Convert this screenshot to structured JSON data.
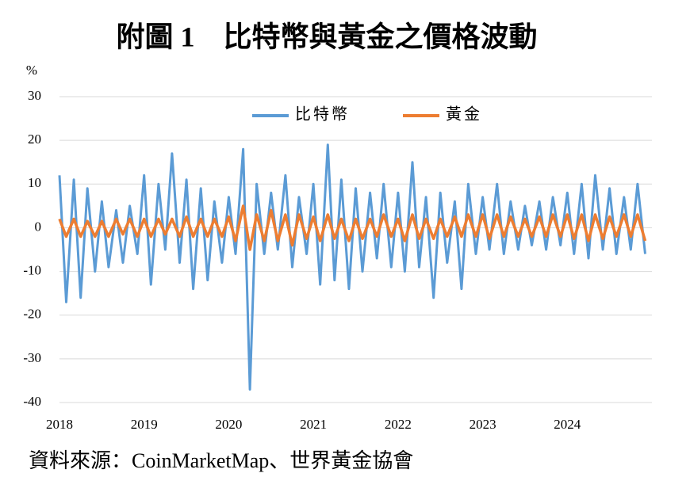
{
  "chart_data": {
    "type": "line",
    "title": "附圖 1　比特幣與黃金之價格波動",
    "y_unit": "%",
    "source": "資料來源：CoinMarketMap、世界黃金協會",
    "xlim": [
      2018,
      2025
    ],
    "xticks": [
      2018,
      2019,
      2020,
      2021,
      2022,
      2023,
      2024
    ],
    "ylim": [
      -40,
      30
    ],
    "yticks": [
      -40,
      -30,
      -20,
      -10,
      0,
      10,
      20,
      30
    ],
    "grid": true,
    "legend": "top",
    "x": [
      2018.0,
      2018.08,
      2018.17,
      2018.25,
      2018.33,
      2018.42,
      2018.5,
      2018.58,
      2018.67,
      2018.75,
      2018.83,
      2018.92,
      2019.0,
      2019.08,
      2019.17,
      2019.25,
      2019.33,
      2019.42,
      2019.5,
      2019.58,
      2019.67,
      2019.75,
      2019.83,
      2019.92,
      2020.0,
      2020.08,
      2020.17,
      2020.25,
      2020.33,
      2020.42,
      2020.5,
      2020.58,
      2020.67,
      2020.75,
      2020.83,
      2020.92,
      2021.0,
      2021.08,
      2021.17,
      2021.25,
      2021.33,
      2021.42,
      2021.5,
      2021.58,
      2021.67,
      2021.75,
      2021.83,
      2021.92,
      2022.0,
      2022.08,
      2022.17,
      2022.25,
      2022.33,
      2022.42,
      2022.5,
      2022.58,
      2022.67,
      2022.75,
      2022.83,
      2022.92,
      2023.0,
      2023.08,
      2023.17,
      2023.25,
      2023.33,
      2023.42,
      2023.5,
      2023.58,
      2023.67,
      2023.75,
      2023.83,
      2023.92,
      2024.0,
      2024.08,
      2024.17,
      2024.25,
      2024.33,
      2024.42,
      2024.5,
      2024.58,
      2024.67,
      2024.75,
      2024.83,
      2024.92
    ],
    "series": [
      {
        "name": "比特幣",
        "color": "#5b9bd5",
        "values": [
          12,
          -17,
          11,
          -16,
          9,
          -10,
          6,
          -9,
          4,
          -8,
          5,
          -6,
          12,
          -13,
          10,
          -5,
          17,
          -8,
          11,
          -14,
          9,
          -12,
          6,
          -8,
          7,
          -6,
          18,
          -37,
          10,
          -6,
          8,
          -5,
          12,
          -9,
          7,
          -6,
          10,
          -13,
          19,
          -12,
          11,
          -14,
          9,
          -10,
          8,
          -7,
          10,
          -9,
          8,
          -10,
          15,
          -9,
          7,
          -16,
          8,
          -8,
          6,
          -14,
          10,
          -6,
          7,
          -5,
          10,
          -6,
          6,
          -5,
          5,
          -4,
          6,
          -5,
          7,
          -4,
          8,
          -6,
          10,
          -7,
          12,
          -5,
          9,
          -6,
          7,
          -5,
          10,
          -6
        ]
      },
      {
        "name": "黃金",
        "color": "#ed7d31",
        "values": [
          2,
          -2,
          2,
          -2,
          1.5,
          -2,
          1.5,
          -2,
          2,
          -1.5,
          2,
          -2,
          2,
          -2,
          2,
          -1.5,
          2,
          -2,
          2.5,
          -2,
          2,
          -2,
          2,
          -2,
          2.5,
          -3,
          5,
          -5,
          3,
          -3,
          4,
          -3,
          3,
          -4,
          3,
          -2.5,
          2.5,
          -3,
          3,
          -2.5,
          2,
          -3,
          2,
          -2.5,
          2,
          -2,
          3,
          -2,
          2,
          -3,
          3,
          -2.5,
          2,
          -2.5,
          2,
          -2,
          2.5,
          -2,
          3,
          -2,
          3,
          -2.5,
          3,
          -2,
          2.5,
          -2,
          2,
          -2,
          2.5,
          -2,
          3,
          -2,
          3,
          -2.5,
          3,
          -3,
          3,
          -2.5,
          2.5,
          -2,
          3,
          -2,
          3,
          -3
        ]
      }
    ]
  }
}
